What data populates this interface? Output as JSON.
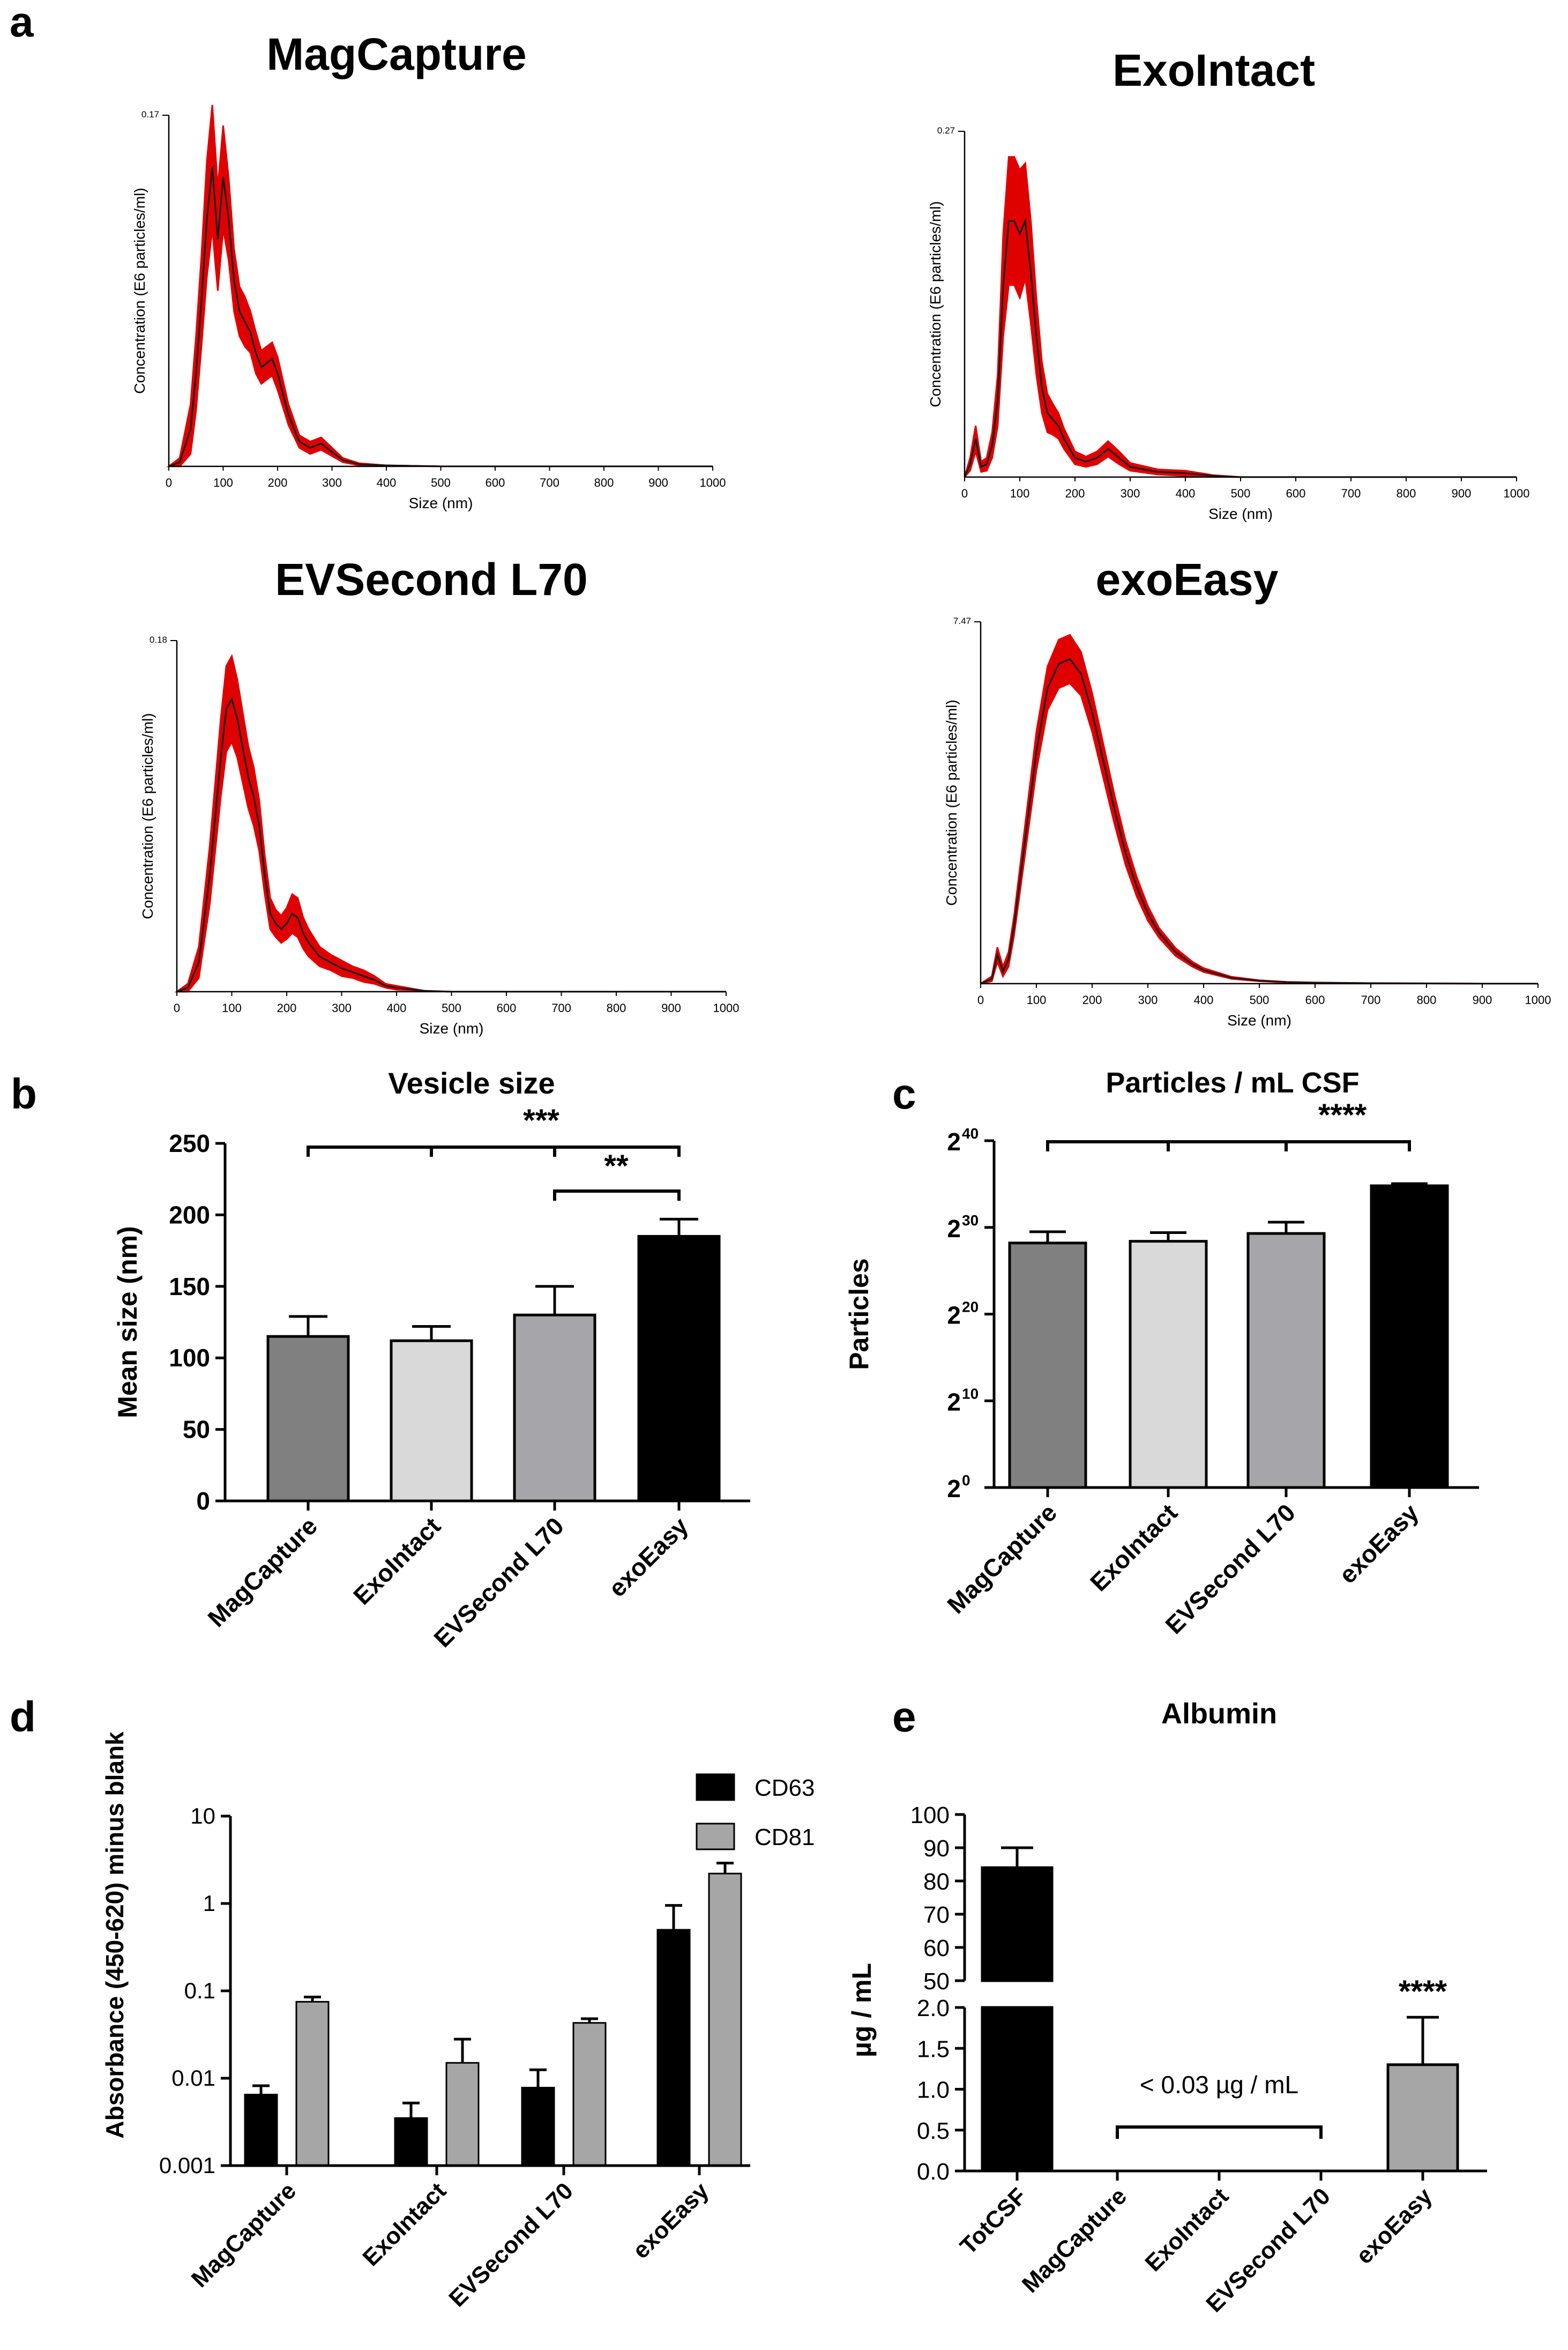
{
  "panels": {
    "a": {
      "letter": "a",
      "plots": [
        {
          "id": "magcapture",
          "title": "MagCapture",
          "ylabel": "Concentration (E6 particles/ml)",
          "xlabel": "Size (nm)",
          "ymax_label": "0.17",
          "xticks": [
            "0",
            "100",
            "200",
            "300",
            "400",
            "500",
            "600",
            "700",
            "800",
            "900",
            "1000"
          ]
        },
        {
          "id": "exointact",
          "title": "ExoIntact",
          "ylabel": "Concentration (E6 particles/ml)",
          "xlabel": "Size (nm)",
          "ymax_label": "0.27",
          "xticks": [
            "0",
            "100",
            "200",
            "300",
            "400",
            "500",
            "600",
            "700",
            "800",
            "900",
            "1000"
          ]
        },
        {
          "id": "evsecond",
          "title": "EVSecond L70",
          "ylabel": "Concentration (E6 particles/ml)",
          "xlabel": "Size (nm)",
          "ymax_label": "0.18",
          "xticks": [
            "0",
            "100",
            "200",
            "300",
            "400",
            "500",
            "600",
            "700",
            "800",
            "900",
            "1000"
          ]
        },
        {
          "id": "exoeasy",
          "title": "exoEasy",
          "ylabel": "Concentration (E6 particles/ml)",
          "xlabel": "Size (nm)",
          "ymax_label": "7.47",
          "xticks": [
            "0",
            "100",
            "200",
            "300",
            "400",
            "500",
            "600",
            "700",
            "800",
            "900",
            "1000"
          ]
        }
      ]
    },
    "b": {
      "letter": "b"
    },
    "c": {
      "letter": "c"
    },
    "d": {
      "letter": "d"
    },
    "e": {
      "letter": "e"
    }
  },
  "colors": {
    "curve_band": "#e00000",
    "curve_line": "#1a1a1a",
    "magcapture": "#808080",
    "exointact": "#d9d9d9",
    "evsecond": "#a6a6aa",
    "exoeasy": "#000000",
    "cd63": "#000000",
    "cd81": "#a6a6a6",
    "axis": "#000000"
  },
  "chart_data": [
    {
      "id": "a-magcapture",
      "type": "area",
      "title": "MagCapture",
      "xlabel": "Size (nm)",
      "ylabel": "Concentration (E6 particles/ml)",
      "xlim": [
        0,
        1000
      ],
      "ylim": [
        0,
        0.17
      ],
      "x": [
        0,
        20,
        40,
        50,
        60,
        70,
        80,
        90,
        100,
        110,
        120,
        130,
        140,
        150,
        160,
        170,
        180,
        190,
        200,
        220,
        240,
        260,
        280,
        300,
        320,
        350,
        400,
        500,
        600,
        700,
        800,
        900,
        1000
      ],
      "y": [
        0,
        0.002,
        0.018,
        0.045,
        0.08,
        0.12,
        0.145,
        0.11,
        0.14,
        0.12,
        0.09,
        0.075,
        0.07,
        0.065,
        0.055,
        0.048,
        0.05,
        0.052,
        0.045,
        0.025,
        0.012,
        0.009,
        0.011,
        0.007,
        0.003,
        0.001,
        0.0005,
        0,
        0,
        0,
        0,
        0,
        0
      ],
      "band": [
        0,
        0.002,
        0.012,
        0.018,
        0.022,
        0.028,
        0.03,
        0.025,
        0.025,
        0.02,
        0.015,
        0.012,
        0.012,
        0.01,
        0.01,
        0.008,
        0.008,
        0.008,
        0.008,
        0.005,
        0.003,
        0.003,
        0.003,
        0.002,
        0.001,
        0.0005,
        0,
        0,
        0,
        0,
        0,
        0,
        0
      ]
    },
    {
      "id": "a-exointact",
      "type": "area",
      "title": "ExoIntact",
      "xlabel": "Size (nm)",
      "ylabel": "Concentration (E6 particles/ml)",
      "xlim": [
        0,
        1000
      ],
      "ylim": [
        0,
        0.27
      ],
      "x": [
        0,
        10,
        20,
        30,
        40,
        50,
        60,
        70,
        80,
        90,
        100,
        110,
        120,
        130,
        140,
        150,
        160,
        170,
        180,
        200,
        220,
        240,
        260,
        280,
        300,
        350,
        400,
        450,
        500,
        600,
        700,
        800,
        900,
        1000
      ],
      "y": [
        0,
        0.01,
        0.03,
        0.008,
        0.01,
        0.025,
        0.06,
        0.15,
        0.2,
        0.2,
        0.19,
        0.2,
        0.16,
        0.11,
        0.07,
        0.05,
        0.045,
        0.04,
        0.03,
        0.015,
        0.012,
        0.015,
        0.022,
        0.015,
        0.008,
        0.004,
        0.003,
        0.001,
        0,
        0,
        0,
        0,
        0,
        0
      ],
      "band": [
        0,
        0.005,
        0.01,
        0.004,
        0.005,
        0.01,
        0.02,
        0.04,
        0.05,
        0.05,
        0.05,
        0.045,
        0.04,
        0.03,
        0.02,
        0.015,
        0.012,
        0.01,
        0.008,
        0.005,
        0.004,
        0.005,
        0.006,
        0.005,
        0.003,
        0.002,
        0.002,
        0.0005,
        0,
        0,
        0,
        0,
        0,
        0
      ]
    },
    {
      "id": "a-evsecond",
      "type": "area",
      "title": "EVSecond L70",
      "xlabel": "Size (nm)",
      "ylabel": "Concentration (E6 particles/ml)",
      "xlim": [
        0,
        1000
      ],
      "ylim": [
        0,
        0.18
      ],
      "x": [
        0,
        20,
        40,
        60,
        80,
        90,
        100,
        110,
        120,
        130,
        140,
        150,
        160,
        170,
        180,
        190,
        200,
        210,
        220,
        230,
        240,
        260,
        280,
        300,
        320,
        340,
        360,
        380,
        400,
        450,
        500,
        600,
        700,
        800,
        900,
        1000
      ],
      "y": [
        0,
        0.002,
        0.015,
        0.06,
        0.12,
        0.145,
        0.15,
        0.14,
        0.125,
        0.11,
        0.1,
        0.085,
        0.06,
        0.04,
        0.035,
        0.032,
        0.035,
        0.04,
        0.038,
        0.03,
        0.025,
        0.018,
        0.015,
        0.012,
        0.01,
        0.008,
        0.006,
        0.003,
        0.002,
        0.0005,
        0,
        0,
        0,
        0,
        0,
        0
      ],
      "band": [
        0,
        0.002,
        0.008,
        0.015,
        0.02,
        0.022,
        0.022,
        0.02,
        0.018,
        0.016,
        0.015,
        0.013,
        0.01,
        0.008,
        0.007,
        0.007,
        0.008,
        0.01,
        0.01,
        0.008,
        0.007,
        0.005,
        0.004,
        0.004,
        0.003,
        0.003,
        0.002,
        0.001,
        0.001,
        0,
        0,
        0,
        0,
        0,
        0,
        0
      ]
    },
    {
      "id": "a-exoeasy",
      "type": "area",
      "title": "exoEasy",
      "xlabel": "Size (nm)",
      "ylabel": "Concentration (E6 particles/ml)",
      "xlim": [
        0,
        1000
      ],
      "ylim": [
        0,
        7.47
      ],
      "x": [
        0,
        20,
        30,
        40,
        50,
        60,
        80,
        100,
        120,
        140,
        160,
        180,
        200,
        220,
        240,
        260,
        280,
        300,
        320,
        350,
        380,
        400,
        450,
        500,
        550,
        600,
        650,
        700,
        800,
        900,
        1000
      ],
      "y": [
        0,
        0.1,
        0.6,
        0.25,
        0.5,
        1.2,
        3.0,
        4.8,
        6.1,
        6.6,
        6.7,
        6.4,
        5.6,
        4.6,
        3.6,
        2.7,
        2.0,
        1.45,
        1.05,
        0.65,
        0.4,
        0.28,
        0.12,
        0.06,
        0.03,
        0.02,
        0.015,
        0.01,
        0.005,
        0,
        0
      ],
      "band": [
        0,
        0.05,
        0.15,
        0.1,
        0.15,
        0.2,
        0.3,
        0.4,
        0.45,
        0.5,
        0.5,
        0.45,
        0.4,
        0.35,
        0.3,
        0.25,
        0.2,
        0.15,
        0.1,
        0.08,
        0.05,
        0.04,
        0.02,
        0.01,
        0.005,
        0.003,
        0.002,
        0.001,
        0,
        0,
        0
      ]
    },
    {
      "id": "b",
      "type": "bar",
      "title": "Vesicle size",
      "ylabel": "Mean size (nm)",
      "xlabel": "",
      "ylim": [
        0,
        250
      ],
      "yticks": [
        "0",
        "50",
        "100",
        "150",
        "200",
        "250"
      ],
      "categories": [
        "MagCapture",
        "ExoIntact",
        "EVSecond L70",
        "exoEasy"
      ],
      "values": [
        115,
        112,
        130,
        185
      ],
      "errors": [
        14,
        10,
        20,
        12
      ],
      "significance": [
        {
          "label": "***",
          "from": 0,
          "to": 3,
          "group": [
            0,
            1,
            2,
            3
          ]
        },
        {
          "label": "**",
          "from": 2,
          "to": 3
        }
      ]
    },
    {
      "id": "c",
      "type": "bar",
      "title": "Particles / mL  CSF",
      "ylabel": "Particles",
      "xlabel": "",
      "yscale": "log2",
      "ylim_exp": [
        0,
        40
      ],
      "yticks": [
        {
          "base": "2",
          "exp": "0"
        },
        {
          "base": "2",
          "exp": "10"
        },
        {
          "base": "2",
          "exp": "20"
        },
        {
          "base": "2",
          "exp": "30"
        },
        {
          "base": "2",
          "exp": "40"
        }
      ],
      "categories": [
        "MagCapture",
        "ExoIntact",
        "EVSecond L70",
        "exoEasy"
      ],
      "values_exp": [
        28.2,
        28.4,
        29.3,
        34.8
      ],
      "errors_exp": [
        1.3,
        1.0,
        1.3,
        0.25
      ],
      "significance": [
        {
          "label": "****",
          "from": 0,
          "to": 3,
          "group": [
            0,
            1,
            2,
            3
          ]
        }
      ]
    },
    {
      "id": "d",
      "type": "bar",
      "title": "",
      "ylabel": "Absorbance (450-620) minus blank",
      "xlabel": "",
      "yscale": "log10",
      "ylim": [
        0.001,
        10
      ],
      "yticks": [
        "0.001",
        "0.01",
        "0.1",
        "1",
        "10"
      ],
      "legend": "top-right",
      "categories": [
        "MagCapture",
        "ExoIntact",
        "EVSecond L70",
        "exoEasy"
      ],
      "series": [
        {
          "name": "CD63",
          "values": [
            0.0065,
            0.0035,
            0.0078,
            0.5
          ],
          "errors_upper": [
            0.0082,
            0.0052,
            0.0125,
            0.95
          ]
        },
        {
          "name": "CD81",
          "values": [
            0.075,
            0.015,
            0.043,
            2.2
          ],
          "errors_upper": [
            0.085,
            0.028,
            0.048,
            2.9
          ]
        }
      ]
    },
    {
      "id": "e",
      "type": "bar",
      "title": "Albumin",
      "ylabel": "µg / mL",
      "xlabel": "",
      "broken_axis": true,
      "lower_ticks": [
        "0.0",
        "0.5",
        "1.0",
        "1.5",
        "2.0"
      ],
      "upper_ticks": [
        "50",
        "60",
        "70",
        "80",
        "90",
        "100"
      ],
      "categories": [
        "TotCSF",
        "MagCapture",
        "ExoIntact",
        "EVSecond L70",
        "exoEasy"
      ],
      "values": [
        84,
        0,
        0,
        0,
        1.3
      ],
      "errors": [
        6,
        0,
        0,
        0,
        0.58
      ],
      "annotation": "< 0.03 µg / mL",
      "significance_label": "****"
    }
  ]
}
